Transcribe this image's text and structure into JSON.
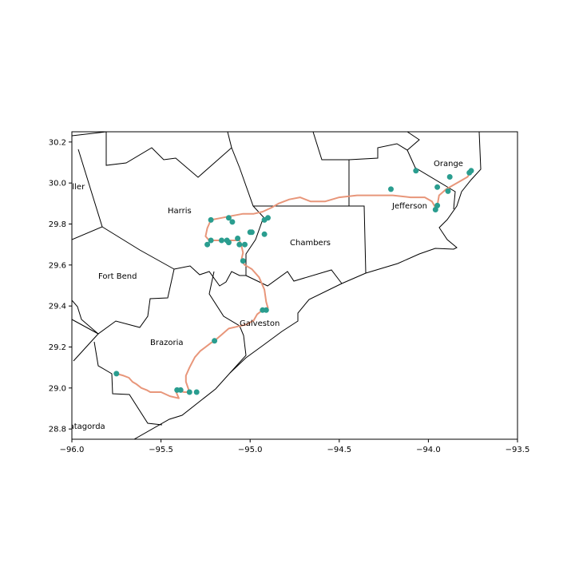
{
  "axes": {
    "x_ticks": [
      "−96.0",
      "−95.5",
      "−95.0",
      "−94.5",
      "−94.0",
      "−93.5"
    ],
    "y_ticks": [
      "28.8",
      "29.0",
      "29.2",
      "29.4",
      "29.6",
      "29.8",
      "30.0",
      "30.2"
    ]
  },
  "county_labels": {
    "waller": "Waller",
    "harris": "Harris",
    "orange": "Orange",
    "jefferson": "Jefferson",
    "chambers": "Chambers",
    "fort_bend": "Fort Bend",
    "galveston": "Galveston",
    "brazoria": "Brazoria",
    "matagorda": "Matagorda"
  },
  "colors": {
    "route": "#e8967a",
    "stops": "#2a9d8f",
    "boundaries": "#000000"
  },
  "chart_data": {
    "type": "map",
    "xlim": [
      -96.0,
      -93.5
    ],
    "ylim": [
      28.75,
      30.25
    ],
    "x_ticks": [
      -96.0,
      -95.5,
      -95.0,
      -94.5,
      -94.0,
      -93.5
    ],
    "y_ticks": [
      28.8,
      29.0,
      29.2,
      29.4,
      29.6,
      29.8,
      30.0,
      30.2
    ],
    "stops": [
      {
        "lon": -95.75,
        "lat": 29.07
      },
      {
        "lon": -95.41,
        "lat": 28.99
      },
      {
        "lon": -95.39,
        "lat": 28.99
      },
      {
        "lon": -95.34,
        "lat": 28.98
      },
      {
        "lon": -95.3,
        "lat": 28.98
      },
      {
        "lon": -95.2,
        "lat": 29.23
      },
      {
        "lon": -94.93,
        "lat": 29.38
      },
      {
        "lon": -94.91,
        "lat": 29.38
      },
      {
        "lon": -95.04,
        "lat": 29.62
      },
      {
        "lon": -95.24,
        "lat": 29.7
      },
      {
        "lon": -95.22,
        "lat": 29.72
      },
      {
        "lon": -95.16,
        "lat": 29.72
      },
      {
        "lon": -95.13,
        "lat": 29.72
      },
      {
        "lon": -95.12,
        "lat": 29.71
      },
      {
        "lon": -95.07,
        "lat": 29.73
      },
      {
        "lon": -95.06,
        "lat": 29.7
      },
      {
        "lon": -95.03,
        "lat": 29.7
      },
      {
        "lon": -95.0,
        "lat": 29.76
      },
      {
        "lon": -94.99,
        "lat": 29.76
      },
      {
        "lon": -94.92,
        "lat": 29.75
      },
      {
        "lon": -95.22,
        "lat": 29.82
      },
      {
        "lon": -95.12,
        "lat": 29.83
      },
      {
        "lon": -95.1,
        "lat": 29.81
      },
      {
        "lon": -94.92,
        "lat": 29.82
      },
      {
        "lon": -94.9,
        "lat": 29.83
      },
      {
        "lon": -94.21,
        "lat": 29.97
      },
      {
        "lon": -94.07,
        "lat": 30.06
      },
      {
        "lon": -93.95,
        "lat": 29.98
      },
      {
        "lon": -93.89,
        "lat": 29.96
      },
      {
        "lon": -93.95,
        "lat": 29.89
      },
      {
        "lon": -93.96,
        "lat": 29.87
      },
      {
        "lon": -93.88,
        "lat": 30.03
      },
      {
        "lon": -93.77,
        "lat": 30.05
      },
      {
        "lon": -93.76,
        "lat": 30.06
      }
    ],
    "route": [
      [
        -95.75,
        29.07
      ],
      [
        -95.71,
        29.06
      ],
      [
        -95.68,
        29.05
      ],
      [
        -95.66,
        29.03
      ],
      [
        -95.64,
        29.02
      ],
      [
        -95.61,
        29.0
      ],
      [
        -95.58,
        28.99
      ],
      [
        -95.56,
        28.98
      ],
      [
        -95.5,
        28.98
      ],
      [
        -95.45,
        28.96
      ],
      [
        -95.4,
        28.95
      ],
      [
        -95.42,
        28.99
      ],
      [
        -95.37,
        28.98
      ],
      [
        -95.34,
        28.98
      ],
      [
        -95.36,
        29.03
      ],
      [
        -95.36,
        29.06
      ],
      [
        -95.34,
        29.1
      ],
      [
        -95.31,
        29.15
      ],
      [
        -95.28,
        29.18
      ],
      [
        -95.22,
        29.22
      ],
      [
        -95.2,
        29.23
      ],
      [
        -95.16,
        29.26
      ],
      [
        -95.12,
        29.29
      ],
      [
        -95.07,
        29.3
      ],
      [
        -95.02,
        29.31
      ],
      [
        -94.98,
        29.33
      ],
      [
        -94.96,
        29.36
      ],
      [
        -94.93,
        29.38
      ],
      [
        -94.9,
        29.39
      ],
      [
        -94.91,
        29.42
      ],
      [
        -94.92,
        29.48
      ],
      [
        -94.95,
        29.54
      ],
      [
        -94.99,
        29.58
      ],
      [
        -95.03,
        29.6
      ],
      [
        -95.05,
        29.62
      ],
      [
        -95.04,
        29.66
      ],
      [
        -95.05,
        29.7
      ],
      [
        -95.06,
        29.72
      ],
      [
        -95.1,
        29.72
      ],
      [
        -95.14,
        29.72
      ],
      [
        -95.18,
        29.72
      ],
      [
        -95.23,
        29.72
      ],
      [
        -95.25,
        29.74
      ],
      [
        -95.24,
        29.78
      ],
      [
        -95.22,
        29.82
      ],
      [
        -95.16,
        29.83
      ],
      [
        -95.1,
        29.84
      ],
      [
        -95.04,
        29.85
      ],
      [
        -94.98,
        29.85
      ],
      [
        -94.93,
        29.86
      ],
      [
        -94.88,
        29.88
      ],
      [
        -94.84,
        29.9
      ],
      [
        -94.78,
        29.92
      ],
      [
        -94.72,
        29.93
      ],
      [
        -94.66,
        29.91
      ],
      [
        -94.58,
        29.91
      ],
      [
        -94.5,
        29.93
      ],
      [
        -94.4,
        29.94
      ],
      [
        -94.3,
        29.94
      ],
      [
        -94.2,
        29.94
      ],
      [
        -94.1,
        29.93
      ],
      [
        -94.02,
        29.93
      ],
      [
        -93.98,
        29.91
      ],
      [
        -93.96,
        29.88
      ],
      [
        -93.95,
        29.89
      ],
      [
        -93.94,
        29.94
      ],
      [
        -93.9,
        29.97
      ],
      [
        -93.86,
        29.99
      ],
      [
        -93.82,
        30.01
      ],
      [
        -93.78,
        30.03
      ],
      [
        -93.76,
        30.06
      ]
    ]
  }
}
